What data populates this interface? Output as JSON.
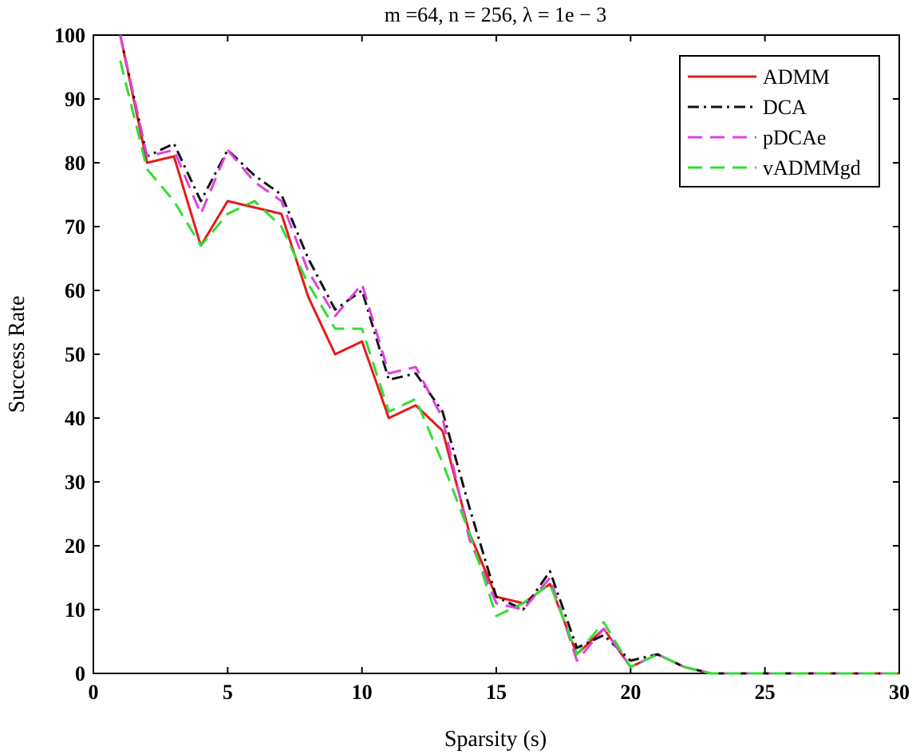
{
  "chart_data": {
    "type": "line",
    "title": "m =64, n = 256, λ = 1e − 3",
    "xlabel": "Sparsity (s)",
    "ylabel": "Success Rate",
    "xlim": [
      0,
      30
    ],
    "ylim": [
      0,
      100
    ],
    "xticks": [
      0,
      5,
      10,
      15,
      20,
      25,
      30
    ],
    "yticks": [
      0,
      10,
      20,
      30,
      40,
      50,
      60,
      70,
      80,
      90,
      100
    ],
    "grid": false,
    "legend_position": "top-right",
    "x": [
      1,
      2,
      3,
      4,
      5,
      6,
      7,
      8,
      9,
      10,
      11,
      12,
      13,
      14,
      15,
      16,
      17,
      18,
      19,
      20,
      21,
      22,
      23,
      24,
      25,
      26,
      27,
      28,
      29,
      30
    ],
    "series": [
      {
        "name": "ADMM",
        "color": "#e41a1c",
        "dash": "solid",
        "values": [
          100,
          80,
          81,
          67,
          74,
          73,
          72,
          59,
          50,
          52,
          40,
          42,
          38,
          22,
          12,
          11,
          14,
          3,
          7,
          1,
          3,
          1,
          0,
          0,
          0,
          0,
          0,
          0,
          0,
          0
        ]
      },
      {
        "name": "DCA",
        "color": "#111111",
        "dash": "dashdot",
        "values": [
          100,
          81,
          83,
          74,
          82,
          78,
          75,
          65,
          57,
          60,
          46,
          47,
          41,
          26,
          12,
          10,
          16,
          4,
          6,
          2,
          3,
          1,
          0,
          0,
          0,
          0,
          0,
          0,
          0,
          0
        ]
      },
      {
        "name": "pDCAe",
        "color": "#e040e0",
        "dash": "dashed",
        "values": [
          100,
          81,
          82,
          72,
          82,
          77,
          74,
          63,
          56,
          61,
          47,
          48,
          40,
          21,
          11,
          10,
          15,
          2,
          7,
          1,
          3,
          1,
          0,
          0,
          0,
          0,
          0,
          0,
          0,
          0
        ]
      },
      {
        "name": "vADMMgd",
        "color": "#33dd33",
        "dash": "dashed",
        "values": [
          96,
          79,
          74,
          67,
          72,
          74,
          70,
          61,
          54,
          54,
          41,
          43,
          33,
          22,
          9,
          11,
          14,
          3,
          8,
          1,
          3,
          1,
          0,
          0,
          0,
          0,
          0,
          0,
          0,
          0
        ]
      }
    ]
  }
}
